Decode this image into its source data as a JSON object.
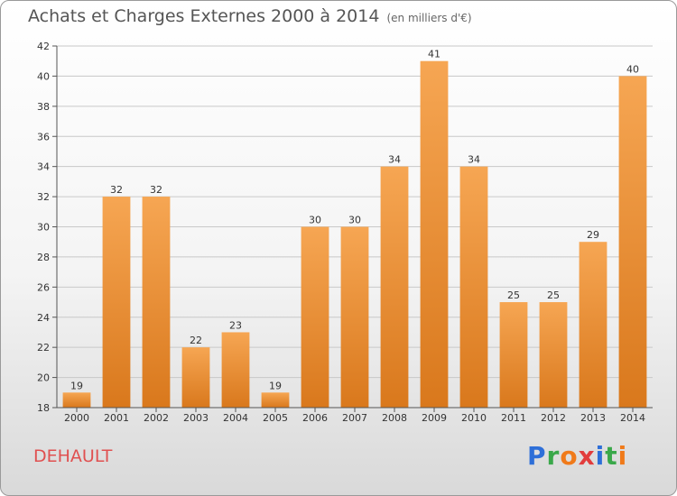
{
  "header": {
    "title": "Achats et Charges Externes 2000 à 2014",
    "subtitle": "(en milliers d'€)"
  },
  "footer": {
    "commune": "DEHAULT",
    "logo_letters": [
      "P",
      "r",
      "o",
      "x",
      "i",
      "t",
      "i"
    ],
    "logo_colors": [
      "#2e6fd8",
      "#3aa84a",
      "#f07a1a",
      "#e23c3c",
      "#2e6fd8",
      "#3aa84a",
      "#f07a1a"
    ]
  },
  "colors": {
    "bar_top": "#f6a653",
    "bar_bottom": "#d9781c",
    "grid": "#c8c8c8",
    "axis": "#555555"
  },
  "chart_data": {
    "type": "bar",
    "title": "Achats et Charges Externes 2000 à 2014",
    "subtitle": "(en milliers d'€)",
    "xlabel": "",
    "ylabel": "",
    "categories": [
      "2000",
      "2001",
      "2002",
      "2003",
      "2004",
      "2005",
      "2006",
      "2007",
      "2008",
      "2009",
      "2010",
      "2011",
      "2012",
      "2013",
      "2014"
    ],
    "values": [
      19,
      32,
      32,
      22,
      23,
      19,
      30,
      30,
      34,
      41,
      34,
      25,
      25,
      29,
      40
    ],
    "ylim": [
      18,
      42
    ],
    "yticks": [
      18,
      20,
      22,
      24,
      26,
      28,
      30,
      32,
      34,
      36,
      38,
      40,
      42
    ],
    "grid": true,
    "legend": "none"
  }
}
